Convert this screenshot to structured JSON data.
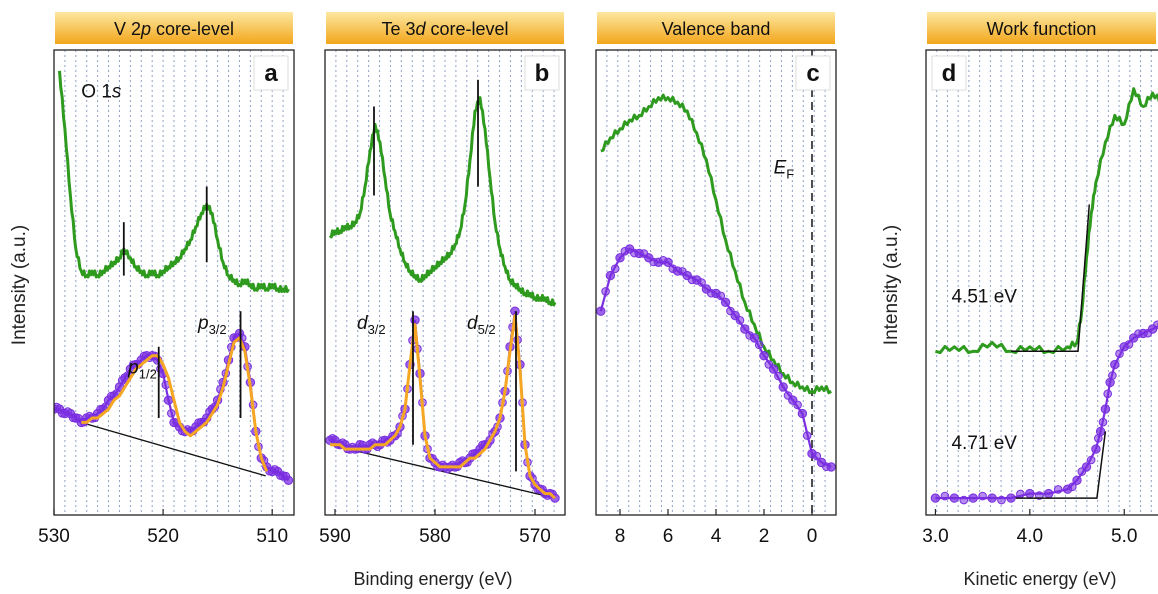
{
  "figure": {
    "ylabel_left": "Intensity (a.u.)",
    "ylabel_right": "Intensity (a.u.)",
    "xlabel_binding": "Binding energy (eV)",
    "xlabel_kinetic": "Kinetic energy (eV)"
  },
  "colors": {
    "green": "#2e9a1e",
    "purple": "#7a2fe0",
    "orange": "#f5a623",
    "banner_top": "#fde7a0",
    "banner_bottom": "#f2a61b",
    "grid": "#8fa0c8"
  },
  "chart_data": [
    {
      "id": "a",
      "type": "line",
      "title": "V 2p core-level",
      "title_parts": [
        "V 2",
        "p",
        " core-level"
      ],
      "panel_letter": "a",
      "xlim": [
        530,
        508
      ],
      "ylim": [
        0,
        1
      ],
      "grid": true,
      "xticks": [
        530,
        520,
        510
      ],
      "xticklabels": [
        "530",
        "520",
        "510"
      ],
      "annotations": [
        {
          "text": "O 1",
          "sub": "",
          "italic": "s",
          "x": 527.5,
          "y": 0.92
        },
        {
          "text": "p",
          "sub": "1/2",
          "x": 523.2,
          "y": 0.3
        },
        {
          "text": "p",
          "sub": "3/2",
          "x": 516.8,
          "y": 0.4
        }
      ],
      "markers": [
        {
          "x": 523.6,
          "y0": 0.52,
          "y1": 0.64
        },
        {
          "x": 516.0,
          "y0": 0.55,
          "y1": 0.72
        },
        {
          "x": 520.4,
          "y0": 0.2,
          "y1": 0.36
        },
        {
          "x": 512.9,
          "y0": 0.2,
          "y1": 0.44
        }
      ],
      "baseline": {
        "x": [
          527.5,
          510.6
        ],
        "y": [
          0.19,
          0.07
        ]
      },
      "series": [
        {
          "name": "",
          "style": "green-line",
          "x": [
            529.5,
            529.0,
            528.5,
            528.0,
            527.5,
            527.0,
            526.5,
            526.0,
            525.5,
            525.0,
            524.5,
            524.0,
            523.6,
            523.0,
            522.5,
            522.0,
            521.5,
            521.0,
            520.5,
            520.0,
            519.5,
            519.0,
            518.5,
            518.0,
            517.5,
            517.0,
            516.5,
            516.0,
            515.5,
            515.0,
            514.5,
            514.0,
            513.5,
            513.0,
            512.5,
            512.0,
            511.5,
            511.0,
            510.5,
            510.0,
            509.5,
            509.0,
            508.5
          ],
          "y": [
            0.98,
            0.85,
            0.7,
            0.58,
            0.53,
            0.52,
            0.53,
            0.52,
            0.53,
            0.54,
            0.55,
            0.56,
            0.58,
            0.56,
            0.54,
            0.53,
            0.52,
            0.53,
            0.52,
            0.53,
            0.54,
            0.55,
            0.56,
            0.58,
            0.6,
            0.63,
            0.66,
            0.68,
            0.66,
            0.6,
            0.55,
            0.52,
            0.51,
            0.5,
            0.51,
            0.5,
            0.49,
            0.5,
            0.49,
            0.5,
            0.49,
            0.49,
            0.49
          ]
        },
        {
          "name": "",
          "style": "purple-dots",
          "x": [
            530.0,
            529.5,
            529.0,
            528.5,
            528.0,
            527.5,
            527.0,
            526.5,
            526.0,
            525.5,
            525.0,
            524.5,
            524.0,
            523.5,
            523.0,
            522.5,
            522.0,
            521.5,
            521.0,
            520.5,
            520.0,
            519.5,
            519.0,
            518.5,
            518.0,
            517.5,
            517.0,
            516.5,
            516.0,
            515.5,
            515.0,
            514.5,
            514.0,
            513.5,
            513.0,
            512.5,
            512.0,
            511.5,
            511.0,
            510.5,
            510.0,
            509.5,
            509.0,
            508.5
          ],
          "y": [
            0.22,
            0.22,
            0.21,
            0.21,
            0.2,
            0.19,
            0.2,
            0.2,
            0.21,
            0.22,
            0.24,
            0.25,
            0.27,
            0.29,
            0.31,
            0.32,
            0.33,
            0.34,
            0.34,
            0.33,
            0.3,
            0.24,
            0.19,
            0.18,
            0.17,
            0.17,
            0.18,
            0.19,
            0.2,
            0.22,
            0.24,
            0.28,
            0.33,
            0.38,
            0.39,
            0.36,
            0.28,
            0.17,
            0.11,
            0.09,
            0.08,
            0.08,
            0.07,
            0.06
          ]
        },
        {
          "name": "",
          "style": "orange-fit",
          "x": [
            527.5,
            527.0,
            526.5,
            526.0,
            525.5,
            525.0,
            524.5,
            524.0,
            523.5,
            523.0,
            522.5,
            522.0,
            521.5,
            521.0,
            520.5,
            520.0,
            519.5,
            519.0,
            518.5,
            518.0,
            517.5,
            517.0,
            516.5,
            516.0,
            515.5,
            515.0,
            514.5,
            514.0,
            513.5,
            513.0,
            512.5,
            512.0,
            511.5,
            511.0,
            510.5
          ],
          "y": [
            0.19,
            0.19,
            0.2,
            0.2,
            0.21,
            0.22,
            0.24,
            0.25,
            0.27,
            0.29,
            0.31,
            0.32,
            0.33,
            0.34,
            0.34,
            0.32,
            0.29,
            0.24,
            0.19,
            0.17,
            0.16,
            0.17,
            0.18,
            0.19,
            0.21,
            0.23,
            0.27,
            0.32,
            0.37,
            0.38,
            0.35,
            0.27,
            0.17,
            0.11,
            0.08
          ]
        }
      ]
    },
    {
      "id": "b",
      "type": "line",
      "title": "Te 3d core-level",
      "title_parts": [
        "Te 3",
        "d",
        " core-level"
      ],
      "panel_letter": "b",
      "xlim": [
        591,
        567
      ],
      "ylim": [
        0,
        1
      ],
      "grid": true,
      "xticks": [
        590,
        580,
        570
      ],
      "xticklabels": [
        "590",
        "580",
        "570"
      ],
      "annotations": [
        {
          "text": "d",
          "sub": "3/2",
          "x": 587.8,
          "y": 0.4
        },
        {
          "text": "d",
          "sub": "5/2",
          "x": 576.8,
          "y": 0.4
        }
      ],
      "markers": [
        {
          "x": 586.1,
          "y0": 0.7,
          "y1": 0.9
        },
        {
          "x": 575.7,
          "y0": 0.72,
          "y1": 0.96
        },
        {
          "x": 582.2,
          "y0": 0.14,
          "y1": 0.44
        },
        {
          "x": 571.9,
          "y0": 0.08,
          "y1": 0.44
        }
      ],
      "baseline": {
        "x": [
          590.5,
          568.0
        ],
        "y": [
          0.14,
          0.02
        ]
      },
      "series": [
        {
          "name": "",
          "style": "green-line",
          "x": [
            590.5,
            590.0,
            589.5,
            589.0,
            588.5,
            588.0,
            587.5,
            587.0,
            586.5,
            586.0,
            585.5,
            585.0,
            584.5,
            584.0,
            583.5,
            583.0,
            582.5,
            582.0,
            581.5,
            581.0,
            580.5,
            580.0,
            579.5,
            579.0,
            578.5,
            578.0,
            577.5,
            577.0,
            576.5,
            576.0,
            575.5,
            575.0,
            574.5,
            574.0,
            573.5,
            573.0,
            572.5,
            572.0,
            571.5,
            571.0,
            570.5,
            570.0,
            569.5,
            569.0,
            568.5,
            568.0
          ],
          "y": [
            0.61,
            0.62,
            0.62,
            0.63,
            0.63,
            0.64,
            0.66,
            0.72,
            0.8,
            0.86,
            0.82,
            0.74,
            0.66,
            0.62,
            0.58,
            0.55,
            0.53,
            0.52,
            0.51,
            0.52,
            0.53,
            0.54,
            0.55,
            0.56,
            0.57,
            0.59,
            0.62,
            0.68,
            0.78,
            0.89,
            0.92,
            0.85,
            0.74,
            0.64,
            0.58,
            0.54,
            0.51,
            0.5,
            0.49,
            0.48,
            0.48,
            0.47,
            0.47,
            0.47,
            0.46,
            0.46
          ]
        },
        {
          "name": "",
          "style": "purple-dots",
          "x": [
            590.5,
            590.0,
            589.5,
            589.0,
            588.5,
            588.0,
            587.5,
            587.0,
            586.5,
            586.0,
            585.5,
            585.0,
            584.5,
            584.0,
            583.5,
            583.0,
            582.5,
            582.0,
            581.5,
            581.0,
            580.5,
            580.0,
            579.5,
            579.0,
            578.5,
            578.0,
            577.5,
            577.0,
            576.5,
            576.0,
            575.5,
            575.0,
            574.5,
            574.0,
            573.5,
            573.0,
            572.5,
            572.0,
            571.5,
            571.0,
            570.5,
            570.0,
            569.5,
            569.0,
            568.5,
            568.0
          ],
          "y": [
            0.15,
            0.15,
            0.14,
            0.14,
            0.13,
            0.13,
            0.14,
            0.13,
            0.14,
            0.14,
            0.14,
            0.15,
            0.15,
            0.16,
            0.18,
            0.22,
            0.32,
            0.42,
            0.3,
            0.16,
            0.11,
            0.1,
            0.09,
            0.09,
            0.09,
            0.09,
            0.1,
            0.1,
            0.11,
            0.12,
            0.13,
            0.14,
            0.15,
            0.17,
            0.2,
            0.26,
            0.36,
            0.44,
            0.32,
            0.14,
            0.07,
            0.05,
            0.04,
            0.03,
            0.03,
            0.02
          ]
        },
        {
          "name": "",
          "style": "orange-fit",
          "x": [
            590.5,
            590.0,
            589.5,
            589.0,
            588.5,
            588.0,
            587.5,
            587.0,
            586.5,
            586.0,
            585.5,
            585.0,
            584.5,
            584.0,
            583.5,
            583.0,
            582.5,
            582.0,
            581.5,
            581.0,
            580.5,
            580.0,
            579.5,
            579.0,
            578.5,
            578.0,
            577.5,
            577.0,
            576.5,
            576.0,
            575.5,
            575.0,
            574.5,
            574.0,
            573.5,
            573.0,
            572.5,
            572.0,
            571.5,
            571.0,
            570.5,
            570.0,
            569.5,
            569.0,
            568.5,
            568.0
          ],
          "y": [
            0.14,
            0.14,
            0.14,
            0.13,
            0.13,
            0.13,
            0.13,
            0.13,
            0.13,
            0.14,
            0.14,
            0.14,
            0.15,
            0.16,
            0.18,
            0.22,
            0.32,
            0.41,
            0.29,
            0.16,
            0.11,
            0.1,
            0.09,
            0.09,
            0.09,
            0.09,
            0.09,
            0.1,
            0.11,
            0.11,
            0.12,
            0.13,
            0.15,
            0.17,
            0.2,
            0.26,
            0.35,
            0.43,
            0.31,
            0.14,
            0.07,
            0.05,
            0.04,
            0.03,
            0.03,
            0.02
          ]
        }
      ]
    },
    {
      "id": "c",
      "type": "line",
      "title": "Valence band",
      "title_parts": [
        "Valence band",
        "",
        ""
      ],
      "panel_letter": "c",
      "xlim": [
        9,
        -1
      ],
      "ylim": [
        0,
        1
      ],
      "grid": true,
      "xticks": [
        8,
        6,
        4,
        2,
        0
      ],
      "xticklabels": [
        "8",
        "6",
        "4",
        "2",
        "0"
      ],
      "annotations": [
        {
          "text": "E",
          "sub": "F",
          "x": 1.6,
          "y": 0.75
        }
      ],
      "fermi_level": 0,
      "series": [
        {
          "name": "",
          "style": "green-line",
          "x": [
            8.8,
            8.4,
            8.0,
            7.6,
            7.2,
            6.8,
            6.4,
            6.0,
            5.6,
            5.2,
            4.8,
            4.4,
            4.0,
            3.6,
            3.2,
            2.8,
            2.4,
            2.0,
            1.6,
            1.2,
            0.8,
            0.4,
            0.0,
            -0.4,
            -0.8
          ],
          "y": [
            0.8,
            0.83,
            0.85,
            0.87,
            0.88,
            0.9,
            0.92,
            0.92,
            0.91,
            0.89,
            0.84,
            0.78,
            0.69,
            0.6,
            0.53,
            0.46,
            0.41,
            0.36,
            0.33,
            0.3,
            0.28,
            0.27,
            0.26,
            0.27,
            0.26
          ]
        },
        {
          "name": "",
          "style": "purple-dots",
          "x": [
            8.8,
            8.4,
            8.0,
            7.6,
            7.2,
            6.8,
            6.4,
            6.0,
            5.6,
            5.2,
            4.8,
            4.4,
            4.0,
            3.6,
            3.2,
            2.8,
            2.4,
            2.0,
            1.6,
            1.2,
            0.8,
            0.4,
            0.0,
            -0.4,
            -0.8
          ],
          "y": [
            0.44,
            0.52,
            0.56,
            0.58,
            0.57,
            0.56,
            0.55,
            0.55,
            0.53,
            0.52,
            0.51,
            0.49,
            0.48,
            0.46,
            0.43,
            0.4,
            0.38,
            0.34,
            0.31,
            0.27,
            0.24,
            0.21,
            0.12,
            0.1,
            0.09
          ]
        }
      ]
    },
    {
      "id": "d",
      "type": "line",
      "title": "Work function",
      "title_parts": [
        "Work function",
        "",
        ""
      ],
      "panel_letter": "d",
      "xlim": [
        2.9,
        5.4
      ],
      "ylim": [
        0,
        1
      ],
      "grid": true,
      "xticks": [
        3.0,
        4.0,
        5.0
      ],
      "xticklabels": [
        "3.0",
        "4.0",
        "5.0"
      ],
      "annotations": [
        {
          "text": "4.51 eV",
          "sub": "",
          "x": 3.17,
          "y": 0.46
        },
        {
          "text": "4.71 eV",
          "sub": "",
          "x": 3.17,
          "y": 0.13
        }
      ],
      "cutoff_lines": [
        {
          "x": [
            3.8,
            4.51,
            4.63
          ],
          "y": [
            0.35,
            0.35,
            0.68
          ]
        },
        {
          "x": [
            3.85,
            4.71,
            4.8
          ],
          "y": [
            0.02,
            0.02,
            0.17
          ]
        }
      ],
      "series": [
        {
          "name": "",
          "style": "green-line",
          "x": [
            3.0,
            3.2,
            3.4,
            3.6,
            3.8,
            4.0,
            4.2,
            4.4,
            4.5,
            4.55,
            4.6,
            4.65,
            4.7,
            4.8,
            4.9,
            5.0,
            5.1,
            5.2,
            5.3,
            5.4
          ],
          "y": [
            0.35,
            0.36,
            0.35,
            0.37,
            0.35,
            0.36,
            0.35,
            0.36,
            0.37,
            0.44,
            0.56,
            0.66,
            0.73,
            0.82,
            0.88,
            0.86,
            0.94,
            0.9,
            0.93,
            0.91
          ]
        },
        {
          "name": "",
          "style": "purple-dots",
          "x": [
            3.0,
            3.2,
            3.4,
            3.6,
            3.8,
            4.0,
            4.2,
            4.4,
            4.5,
            4.6,
            4.7,
            4.75,
            4.8,
            4.85,
            4.9,
            5.0,
            5.1,
            5.2,
            5.3,
            5.4
          ],
          "y": [
            0.02,
            0.02,
            0.02,
            0.02,
            0.02,
            0.03,
            0.03,
            0.04,
            0.06,
            0.09,
            0.13,
            0.17,
            0.22,
            0.28,
            0.32,
            0.36,
            0.38,
            0.39,
            0.4,
            0.41
          ]
        }
      ]
    }
  ]
}
